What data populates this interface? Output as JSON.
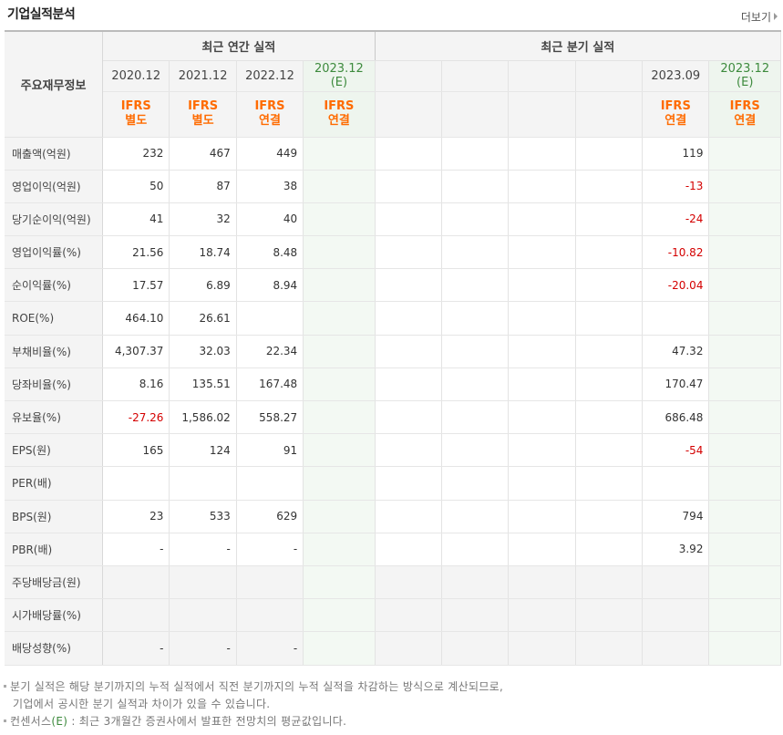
{
  "header": {
    "title": "기업실적분석",
    "more_label": "더보기"
  },
  "table": {
    "row_header_label": "주요재무정보",
    "annual_group_label": "최근 연간 실적",
    "quarter_group_label": "최근 분기 실적",
    "annual_periods": [
      {
        "label": "2020.12",
        "std": "IFRS",
        "type": "별도",
        "estimate": false
      },
      {
        "label": "2021.12",
        "std": "IFRS",
        "type": "별도",
        "estimate": false
      },
      {
        "label": "2022.12",
        "std": "IFRS",
        "type": "연결",
        "estimate": false
      },
      {
        "label": "2023.12",
        "sub": "(E)",
        "std": "IFRS",
        "type": "연결",
        "estimate": true
      }
    ],
    "quarter_periods": [
      {
        "label": "",
        "std": "",
        "type": "",
        "estimate": false
      },
      {
        "label": "",
        "std": "",
        "type": "",
        "estimate": false
      },
      {
        "label": "",
        "std": "",
        "type": "",
        "estimate": false
      },
      {
        "label": "",
        "std": "",
        "type": "",
        "estimate": false
      },
      {
        "label": "2023.09",
        "std": "IFRS",
        "type": "연결",
        "estimate": false
      },
      {
        "label": "2023.12",
        "sub": "(E)",
        "std": "IFRS",
        "type": "연결",
        "estimate": true
      }
    ],
    "rows": [
      {
        "label": "매출액(억원)",
        "annual": [
          "232",
          "467",
          "449",
          ""
        ],
        "quarter": [
          "",
          "",
          "",
          "",
          "119",
          ""
        ]
      },
      {
        "label": "영업이익(억원)",
        "annual": [
          "50",
          "87",
          "38",
          ""
        ],
        "quarter": [
          "",
          "",
          "",
          "",
          "-13",
          ""
        ]
      },
      {
        "label": "당기순이익(억원)",
        "annual": [
          "41",
          "32",
          "40",
          ""
        ],
        "quarter": [
          "",
          "",
          "",
          "",
          "-24",
          ""
        ]
      },
      {
        "label": "영업이익률(%)",
        "annual": [
          "21.56",
          "18.74",
          "8.48",
          ""
        ],
        "quarter": [
          "",
          "",
          "",
          "",
          "-10.82",
          ""
        ]
      },
      {
        "label": "순이익률(%)",
        "annual": [
          "17.57",
          "6.89",
          "8.94",
          ""
        ],
        "quarter": [
          "",
          "",
          "",
          "",
          "-20.04",
          ""
        ]
      },
      {
        "label": "ROE(%)",
        "annual": [
          "464.10",
          "26.61",
          "",
          ""
        ],
        "quarter": [
          "",
          "",
          "",
          "",
          "",
          ""
        ]
      },
      {
        "label": "부채비율(%)",
        "annual": [
          "4,307.37",
          "32.03",
          "22.34",
          ""
        ],
        "quarter": [
          "",
          "",
          "",
          "",
          "47.32",
          ""
        ]
      },
      {
        "label": "당좌비율(%)",
        "annual": [
          "8.16",
          "135.51",
          "167.48",
          ""
        ],
        "quarter": [
          "",
          "",
          "",
          "",
          "170.47",
          ""
        ]
      },
      {
        "label": "유보율(%)",
        "annual": [
          "-27.26",
          "1,586.02",
          "558.27",
          ""
        ],
        "quarter": [
          "",
          "",
          "",
          "",
          "686.48",
          ""
        ]
      },
      {
        "label": "EPS(원)",
        "annual": [
          "165",
          "124",
          "91",
          ""
        ],
        "quarter": [
          "",
          "",
          "",
          "",
          "-54",
          ""
        ]
      },
      {
        "label": "PER(배)",
        "annual": [
          "",
          "",
          "",
          ""
        ],
        "quarter": [
          "",
          "",
          "",
          "",
          "",
          ""
        ]
      },
      {
        "label": "BPS(원)",
        "annual": [
          "23",
          "533",
          "629",
          ""
        ],
        "quarter": [
          "",
          "",
          "",
          "",
          "794",
          ""
        ]
      },
      {
        "label": "PBR(배)",
        "annual": [
          "-",
          "-",
          "-",
          ""
        ],
        "quarter": [
          "",
          "",
          "",
          "",
          "3.92",
          ""
        ]
      },
      {
        "label": "주당배당금(원)",
        "annual": [
          "",
          "",
          "",
          ""
        ],
        "quarter": [
          "",
          "",
          "",
          "",
          "",
          ""
        ]
      },
      {
        "label": "시가배당률(%)",
        "annual": [
          "",
          "",
          "",
          ""
        ],
        "quarter": [
          "",
          "",
          "",
          "",
          "",
          ""
        ]
      },
      {
        "label": "배당성향(%)",
        "annual": [
          "-",
          "-",
          "-",
          ""
        ],
        "quarter": [
          "",
          "",
          "",
          "",
          "",
          ""
        ]
      }
    ]
  },
  "notes": {
    "line1": "분기 실적은 해당 분기까지의 누적 실적에서 직전 분기까지의 누적 실적을 차감하는 방식으로 계산되므로,",
    "line2": "기업에서 공시한 분기 실적과 차이가 있을 수 있습니다.",
    "line3_prefix": "컨센서스",
    "line3_mark": "(E)",
    "line3_rest": " : 최근 3개월간 증권사에서 발표한 전망치의 평균값입니다."
  },
  "colors": {
    "ifrs_orange": "#ff6b00",
    "negative_red": "#d40000",
    "estimate_green": "#3d8a3d"
  }
}
